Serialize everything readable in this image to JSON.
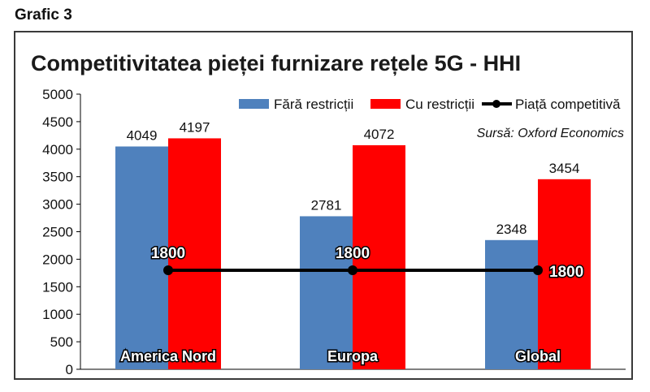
{
  "figure_label": "Grafic 3",
  "chart_data": {
    "type": "bar",
    "title": "Competitivitatea pieței furnizare rețele 5G - HHI",
    "source": "Sursă: Oxford Economics",
    "categories": [
      "America Nord",
      "Europa",
      "Global"
    ],
    "series": [
      {
        "name": "Fără restricții",
        "color": "#4f81bd",
        "values": [
          4049,
          2781,
          2348
        ]
      },
      {
        "name": "Cu restricții",
        "color": "#ff0000",
        "values": [
          4197,
          4072,
          3454
        ]
      }
    ],
    "reference_line": {
      "name": "Piață competitivă",
      "color": "#000000",
      "values": [
        1800,
        1800,
        1800
      ],
      "labels": [
        "1800",
        "1800",
        "1800"
      ]
    },
    "y_ticks": [
      "0",
      "500",
      "1000",
      "1500",
      "2000",
      "2500",
      "3000",
      "3500",
      "4000",
      "4500",
      "5000"
    ],
    "ylim": [
      0,
      5000
    ],
    "grid": false,
    "legend_position": "top-right"
  }
}
